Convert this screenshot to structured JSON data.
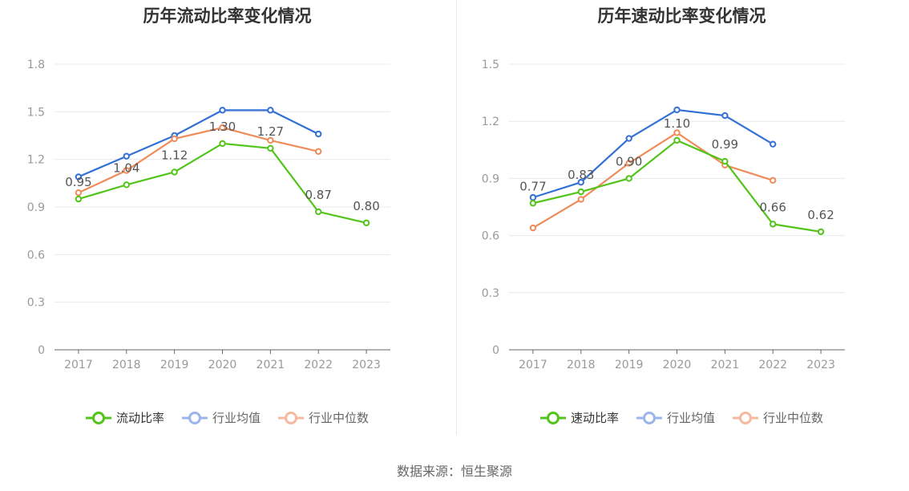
{
  "colors": {
    "company": "#52c41a",
    "avg": "#3370d6",
    "median": "#f08c5a",
    "grid": "#e6e8ee",
    "axis": "#666666",
    "tick": "#999999",
    "label": "#555555"
  },
  "chart_data": [
    {
      "type": "line",
      "title": "历年流动比率变化情况",
      "categories": [
        "2017",
        "2018",
        "2019",
        "2020",
        "2021",
        "2022",
        "2023"
      ],
      "ylim": [
        0,
        1.8
      ],
      "yticks": [
        "0",
        "0.3",
        "0.6",
        "0.9",
        "1.2",
        "1.5",
        "1.8"
      ],
      "grid": true,
      "legend_position": "bottom",
      "series": [
        {
          "name": "流动比率",
          "key": "company",
          "labeled": true,
          "values": [
            0.95,
            1.04,
            1.12,
            1.3,
            1.27,
            0.87,
            0.8
          ],
          "labels": [
            "0.95",
            "1.04",
            "1.12",
            "1.30",
            "1.27",
            "0.87",
            "0.80"
          ]
        },
        {
          "name": "行业均值",
          "key": "avg",
          "values": [
            1.09,
            1.22,
            1.35,
            1.51,
            1.51,
            1.36,
            null
          ]
        },
        {
          "name": "行业中位数",
          "key": "median",
          "values": [
            0.99,
            1.13,
            1.33,
            1.4,
            1.32,
            1.25,
            null
          ]
        }
      ]
    },
    {
      "type": "line",
      "title": "历年速动比率变化情况",
      "categories": [
        "2017",
        "2018",
        "2019",
        "2020",
        "2021",
        "2022",
        "2023"
      ],
      "ylim": [
        0,
        1.5
      ],
      "yticks": [
        "0",
        "0.3",
        "0.6",
        "0.9",
        "1.2",
        "1.5"
      ],
      "grid": true,
      "legend_position": "bottom",
      "series": [
        {
          "name": "速动比率",
          "key": "company",
          "labeled": true,
          "values": [
            0.77,
            0.83,
            0.9,
            1.1,
            0.99,
            0.66,
            0.62
          ],
          "labels": [
            "0.77",
            "0.83",
            "0.90",
            "1.10",
            "0.99",
            "0.66",
            "0.62"
          ]
        },
        {
          "name": "行业均值",
          "key": "avg",
          "values": [
            0.8,
            0.88,
            1.11,
            1.26,
            1.23,
            1.08,
            null
          ]
        },
        {
          "name": "行业中位数",
          "key": "median",
          "values": [
            0.64,
            0.79,
            0.98,
            1.14,
            0.97,
            0.89,
            null
          ]
        }
      ]
    }
  ],
  "source_text": "数据来源：恒生聚源"
}
